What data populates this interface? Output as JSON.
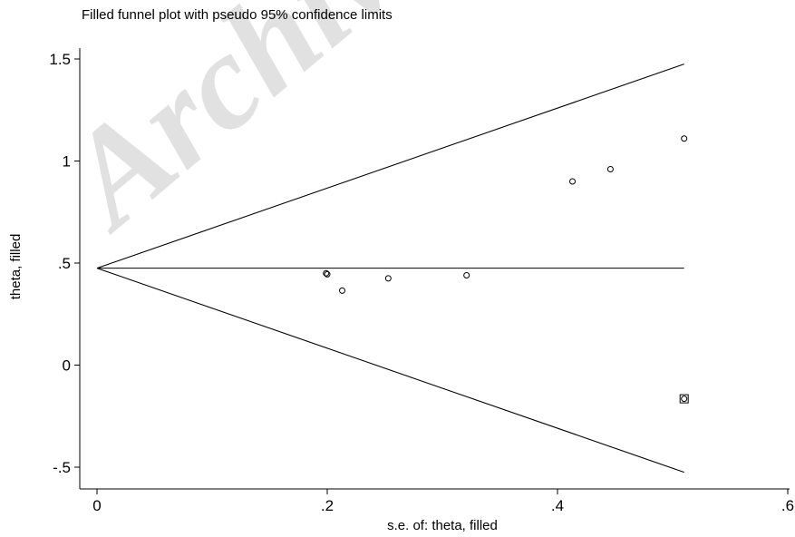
{
  "title": "Filled funnel plot with pseudo 95% confidence limits",
  "watermark": "Archive of",
  "chart_data": {
    "type": "scatter",
    "title": "Filled funnel plot with pseudo 95% confidence limits",
    "xlabel": "s.e. of: theta, filled",
    "ylabel": "theta, filled",
    "xlim": [
      0,
      0.6
    ],
    "ylim": [
      -0.5,
      1.5
    ],
    "x_ticks": [
      0,
      0.2,
      0.4,
      0.6
    ],
    "x_tick_labels": [
      "0",
      ".2",
      ".4",
      ".6"
    ],
    "y_ticks": [
      -0.5,
      0,
      0.5,
      1,
      1.5
    ],
    "y_tick_labels": [
      "-.5",
      "0",
      ".5",
      "1",
      "1.5"
    ],
    "grid": false,
    "pooled_estimate": 0.475,
    "funnel_max_se": 0.51,
    "lines": {
      "upper": [
        [
          0,
          0.475
        ],
        [
          0.51,
          1.475
        ]
      ],
      "center": [
        [
          0,
          0.475
        ],
        [
          0.51,
          0.475
        ]
      ],
      "lower": [
        [
          0,
          0.475
        ],
        [
          0.51,
          -0.525
        ]
      ]
    },
    "studies": [
      {
        "x": 0.199,
        "y": 0.45
      },
      {
        "x": 0.2,
        "y": 0.445
      },
      {
        "x": 0.213,
        "y": 0.365
      },
      {
        "x": 0.253,
        "y": 0.425
      },
      {
        "x": 0.321,
        "y": 0.44
      },
      {
        "x": 0.413,
        "y": 0.9
      },
      {
        "x": 0.446,
        "y": 0.96
      },
      {
        "x": 0.51,
        "y": 1.11
      },
      {
        "x": 0.51,
        "y": -0.165
      }
    ],
    "filled": [
      {
        "x": 0.51,
        "y": -0.165
      }
    ]
  }
}
